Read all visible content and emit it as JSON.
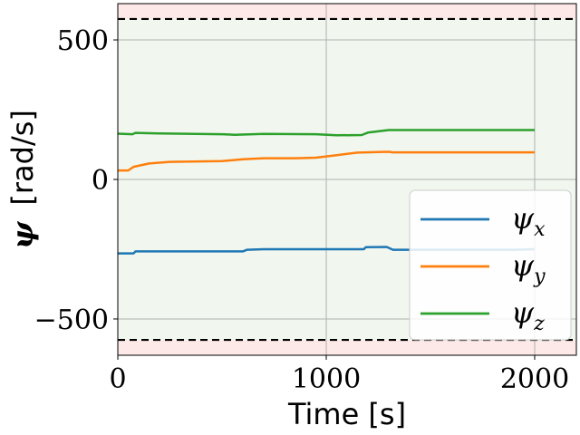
{
  "chart_data": {
    "type": "line",
    "xlabel": "Time [s]",
    "ylabel_symbol": "ψ",
    "ylabel_units": "[rad/s]",
    "xlim": [
      0,
      2200
    ],
    "ylim": [
      -630,
      630
    ],
    "x_ticks": [
      0,
      1000,
      2000
    ],
    "y_ticks": [
      -500,
      0,
      500
    ],
    "x_tick_labels": [
      "0",
      "1000",
      "2000"
    ],
    "y_tick_labels": [
      "−500",
      "0",
      "500"
    ],
    "grid": true,
    "legend_position": "lower right",
    "limits": {
      "upper": 575,
      "lower": -575,
      "style": "dashed",
      "color": "#000000"
    },
    "regions": {
      "safe_color": "#f1f7ee",
      "unsafe_color": "#fde9e7"
    },
    "series": [
      {
        "name": "ψx",
        "base": "ψ",
        "sub": "x",
        "color": "#1f77b4",
        "points": [
          [
            0,
            -265
          ],
          [
            75,
            -265
          ],
          [
            85,
            -258
          ],
          [
            300,
            -258
          ],
          [
            600,
            -258
          ],
          [
            620,
            -252
          ],
          [
            700,
            -250
          ],
          [
            1000,
            -250
          ],
          [
            1180,
            -250
          ],
          [
            1190,
            -243
          ],
          [
            1290,
            -242
          ],
          [
            1320,
            -252
          ],
          [
            1500,
            -252
          ],
          [
            1900,
            -252
          ],
          [
            2000,
            -250
          ]
        ]
      },
      {
        "name": "ψy",
        "base": "ψ",
        "sub": "y",
        "color": "#ff7f0e",
        "points": [
          [
            0,
            32
          ],
          [
            50,
            32
          ],
          [
            75,
            45
          ],
          [
            150,
            57
          ],
          [
            250,
            63
          ],
          [
            500,
            66
          ],
          [
            600,
            72
          ],
          [
            700,
            76
          ],
          [
            850,
            76
          ],
          [
            950,
            78
          ],
          [
            1050,
            87
          ],
          [
            1150,
            96
          ],
          [
            1250,
            98
          ],
          [
            1300,
            99
          ],
          [
            1320,
            97
          ],
          [
            1500,
            97
          ],
          [
            1800,
            97
          ],
          [
            2000,
            97
          ]
        ]
      },
      {
        "name": "ψz",
        "base": "ψ",
        "sub": "z",
        "color": "#2ca02c",
        "points": [
          [
            0,
            164
          ],
          [
            70,
            162
          ],
          [
            85,
            167
          ],
          [
            200,
            165
          ],
          [
            500,
            162
          ],
          [
            560,
            160
          ],
          [
            700,
            163
          ],
          [
            950,
            162
          ],
          [
            1050,
            158
          ],
          [
            1170,
            159
          ],
          [
            1200,
            168
          ],
          [
            1300,
            177
          ],
          [
            1500,
            177
          ],
          [
            2000,
            177
          ]
        ]
      }
    ]
  }
}
